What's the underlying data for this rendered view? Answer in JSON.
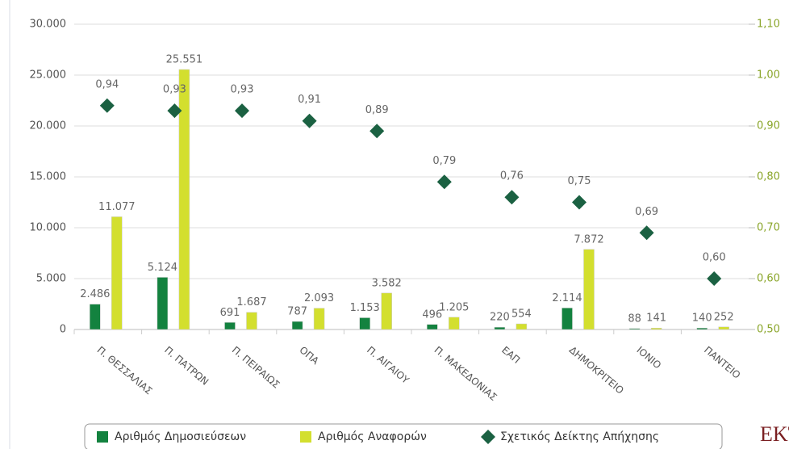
{
  "chart_data": {
    "type": "bar",
    "categories": [
      "Π. ΘΕΣΣΑΛΙΑΣ",
      "Π. ΠΑΤΡΩΝ",
      "Π. ΠΕΙΡΑΙΩΣ",
      "ΟΠΑ",
      "Π. ΑΙΓΑΙΟΥ",
      "Π. ΜΑΚΕΔΟΝΙΑΣ",
      "ΕΑΠ",
      "ΔΗΜΟΚΡΙΤΕΙΟ",
      "ΙΟΝΙΟ",
      "ΠΑΝΤΕΙΟ"
    ],
    "series": [
      {
        "name": "Αριθμός Δημοσιεύσεων",
        "type": "bar",
        "color": "#13823f",
        "values": [
          2486,
          5124,
          691,
          787,
          1153,
          496,
          220,
          2114,
          88,
          140
        ],
        "value_labels": [
          "2.486",
          "5.124",
          "691",
          "787",
          "1.153",
          "496",
          "220",
          "2.114",
          "88",
          "140"
        ]
      },
      {
        "name": "Αριθμός Αναφορών",
        "type": "bar",
        "color": "#d3df2e",
        "values": [
          11077,
          25551,
          1687,
          2093,
          3582,
          1205,
          554,
          7872,
          141,
          252
        ],
        "value_labels": [
          "11.077",
          "25.551",
          "1.687",
          "2.093",
          "3.582",
          "1.205",
          "554",
          "7.872",
          "141",
          "252"
        ]
      },
      {
        "name": "Σχετικός Δείκτης Απήχησης",
        "type": "scatter",
        "axis": "y2",
        "color": "#1b6142",
        "values": [
          0.94,
          0.93,
          0.93,
          0.91,
          0.89,
          0.79,
          0.76,
          0.75,
          0.69,
          0.6
        ],
        "value_labels": [
          "0,94",
          "0,93",
          "0,93",
          "0,91",
          "0,89",
          "0,79",
          "0,76",
          "0,75",
          "0,69",
          "0,60"
        ]
      }
    ],
    "ylim": [
      0,
      30000
    ],
    "yticks": [
      0,
      {
        "value": 5000,
        "label": "5.000"
      },
      {
        "value": 10000,
        "label": "10.000"
      },
      {
        "value": 15000,
        "label": "15.000"
      },
      {
        "value": 20000,
        "label": "20.000"
      },
      {
        "value": 25000,
        "label": "25.000"
      },
      {
        "value": 30000,
        "label": "30.000"
      }
    ],
    "y2lim": [
      0.5,
      1.1
    ],
    "y2ticks": [
      {
        "value": 0.5,
        "label": "0,50"
      },
      {
        "value": 0.6,
        "label": "0,60"
      },
      {
        "value": 0.7,
        "label": "0,70"
      },
      {
        "value": 0.8,
        "label": "0,80"
      },
      {
        "value": 0.9,
        "label": "0,90"
      },
      {
        "value": 1.0,
        "label": "1,00"
      },
      {
        "value": 1.1,
        "label": "1,10"
      }
    ],
    "grid": true,
    "legend": "bottom",
    "logo": "EKT"
  }
}
